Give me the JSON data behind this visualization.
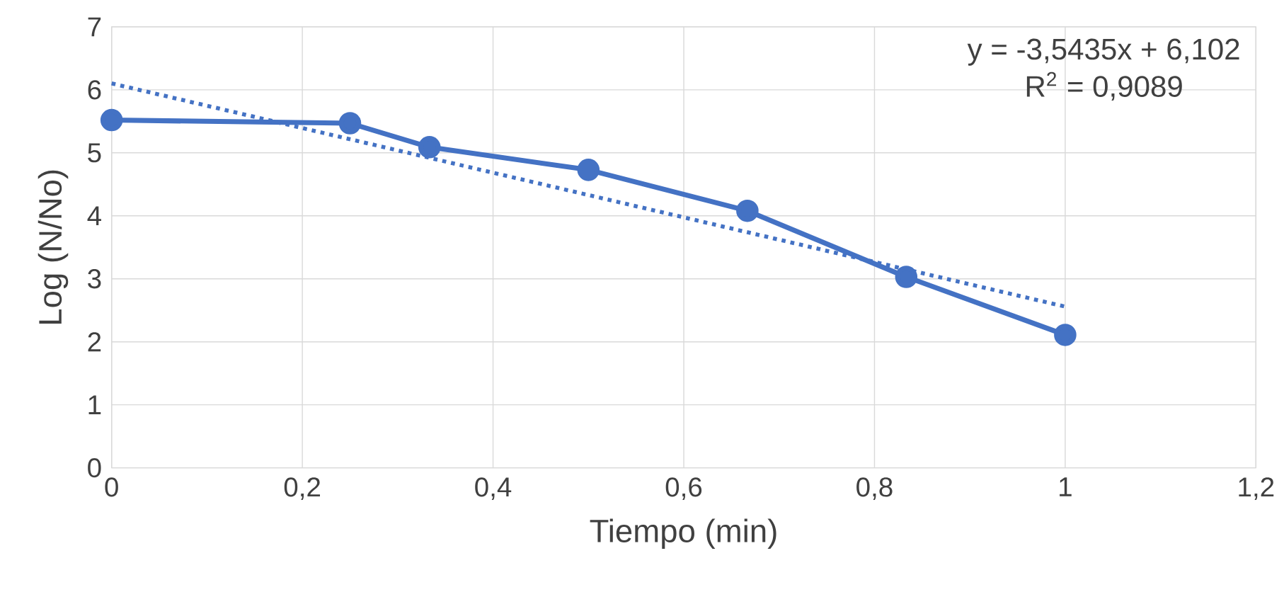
{
  "chart_data": {
    "type": "line",
    "xlabel": "Tiempo (min)",
    "ylabel": "Log (N/No)",
    "x": [
      0,
      0.25,
      0.3333,
      0.5,
      0.6667,
      0.8333,
      1
    ],
    "series": [
      {
        "color": "#4472c4",
        "values": [
          5.52,
          5.47,
          5.09,
          4.73,
          4.08,
          3.03,
          2.11
        ],
        "marker": "circle",
        "line_style": "solid"
      },
      {
        "color": "#4472c4",
        "x": [
          0,
          1
        ],
        "values": [
          6.102,
          2.5585
        ],
        "marker": "none",
        "line_style": "dotted"
      }
    ],
    "annotations": [
      "y = -3,5435x + 6,102",
      "R$^{2}$ = 0,9089"
    ],
    "xlim": [
      0,
      1.2
    ],
    "ylim": [
      0,
      7
    ],
    "xticks": [
      0,
      {
        "value": 0.2,
        "label": "0,2"
      },
      {
        "value": 0.4,
        "label": "0,4"
      },
      {
        "value": 0.6,
        "label": "0,6"
      },
      {
        "value": 0.8,
        "label": "0,8"
      },
      1,
      {
        "value": 1.2,
        "label": "1,2"
      }
    ],
    "yticks": [
      0,
      1,
      2,
      3,
      4,
      5,
      6,
      7
    ],
    "grid": true
  }
}
